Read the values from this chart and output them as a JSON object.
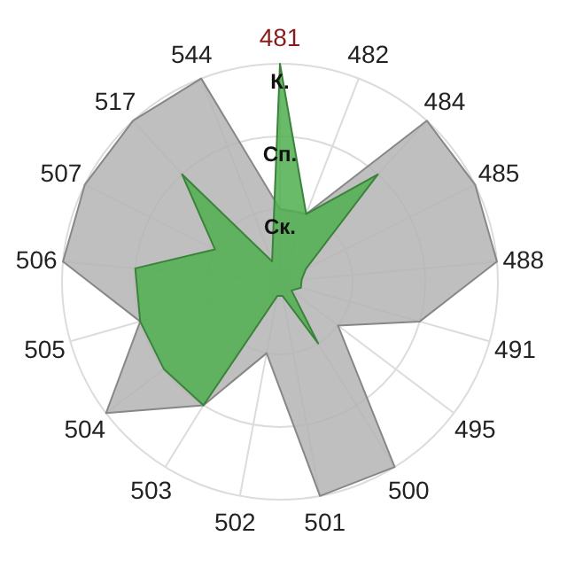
{
  "chart_data": {
    "type": "radar",
    "categories": [
      "481",
      "482",
      "484",
      "485",
      "488",
      "491",
      "495",
      "500",
      "501",
      "502",
      "503",
      "504",
      "505",
      "506",
      "507",
      "517",
      "544"
    ],
    "ylim": [
      0,
      3
    ],
    "yticks": [
      {
        "value": 1,
        "label": "Ск."
      },
      {
        "value": 2,
        "label": "Сп."
      },
      {
        "value": 3,
        "label": "К."
      }
    ],
    "grid": true,
    "series": [
      {
        "color": "#b4b4b4",
        "values": [
          1,
          1,
          3,
          3,
          3,
          2,
          1,
          3,
          3,
          1,
          2,
          3,
          2,
          3,
          3,
          3,
          3
        ]
      },
      {
        "color": "#4fae4f",
        "values": [
          3,
          1,
          2,
          0.4,
          0.3,
          0.3,
          0.2,
          1,
          0.2,
          0.2,
          2,
          2,
          2,
          2,
          1,
          2,
          0.3
        ]
      }
    ]
  }
}
